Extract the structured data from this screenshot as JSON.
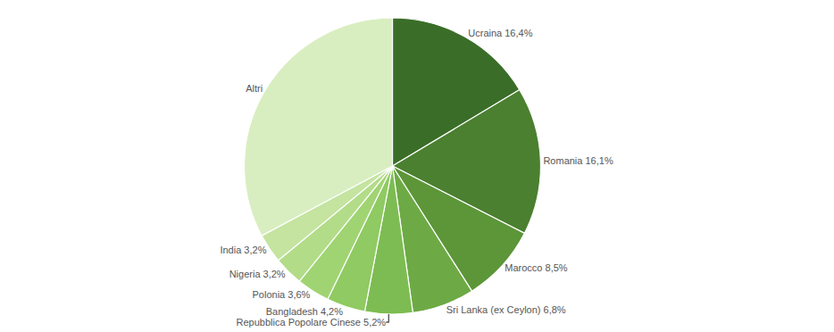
{
  "chart_data": {
    "type": "pie",
    "categories": [
      "Ucraina 16,4%",
      "Romania 16,1%",
      "Marocco 8,5%",
      "Sri Lanka (ex Ceylon) 6,8%",
      "Repubblica Popolare Cinese 5,2%",
      "Bangladesh 4,2%",
      "Polonia 3,6%",
      "Nigeria 3,2%",
      "India 3,2%",
      "Altri"
    ],
    "values": [
      16.4,
      16.1,
      8.5,
      6.8,
      5.2,
      4.2,
      3.6,
      3.2,
      3.2,
      32.8
    ],
    "colors": [
      "#3a6e28",
      "#4a8030",
      "#5c9638",
      "#6daa45",
      "#7dbc52",
      "#8fca62",
      "#a0d472",
      "#b2dc88",
      "#c4e4a0",
      "#d8eec0"
    ],
    "legend": false
  }
}
